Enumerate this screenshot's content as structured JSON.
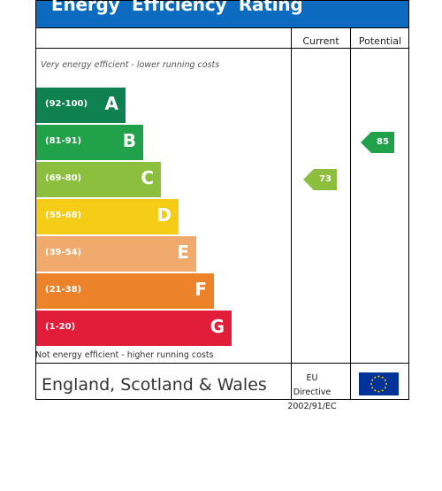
{
  "title": "Energy  Efficiency  Rating",
  "headers": {
    "current": "Current",
    "potential": "Potential"
  },
  "top_note": "Very energy efficient - lower running costs",
  "bottom_note": "Not energy efficient - higher running costs",
  "footer": {
    "region": "England, Scotland & Wales",
    "directive_line1": "EU Directive",
    "directive_line2": "2002/91/EC"
  },
  "chart_data": {
    "type": "bar",
    "title": "Energy  Efficiency  Rating",
    "bands": [
      {
        "range": "(92-100)",
        "letter": "A",
        "color": "#0f8050"
      },
      {
        "range": "(81-91)",
        "letter": "B",
        "color": "#21a24a"
      },
      {
        "range": "(69-80)",
        "letter": "C",
        "color": "#8dbf3e"
      },
      {
        "range": "(55-68)",
        "letter": "D",
        "color": "#f5cc16"
      },
      {
        "range": "(39-54)",
        "letter": "E",
        "color": "#f0ab6c"
      },
      {
        "range": "(21-38)",
        "letter": "F",
        "color": "#ec8229"
      },
      {
        "range": "(1-20)",
        "letter": "G",
        "color": "#e21d3a"
      }
    ],
    "current": {
      "value": 73,
      "band": "C",
      "color": "#8dbf3e"
    },
    "potential": {
      "value": 85,
      "band": "B",
      "color": "#21a24a"
    }
  }
}
